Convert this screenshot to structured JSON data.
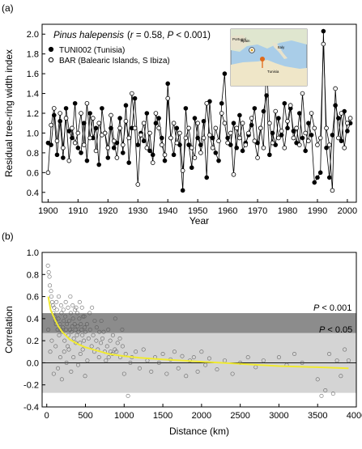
{
  "panel_a": {
    "label": "(a)",
    "title_species": "Pinus halepensis",
    "title_stats": "(r = 0.58, P < 0.001)",
    "legend": [
      {
        "name": "TUNI002 (Tunisia)",
        "marker": "filled"
      },
      {
        "name": "BAR (Balearic Islands, S Ibiza)",
        "marker": "open"
      }
    ],
    "map_labels": [
      "Portugal",
      "Spain",
      "Italy",
      "Tunisia"
    ]
  },
  "panel_b": {
    "label": "(b)",
    "annotation_high": "P < 0.001",
    "annotation_low": "P < 0.05",
    "band_colors": {
      "outer": "#8c8c8c",
      "inner": "#d4d4d4",
      "fit": "#f0ea30"
    }
  },
  "chart_data": [
    {
      "type": "line",
      "xlabel": "Year",
      "ylabel": "Residual tree-ring width index",
      "xlim": [
        1898,
        2003
      ],
      "ylim": [
        0.3,
        2.1
      ],
      "xticks": [
        1900,
        1910,
        1920,
        1930,
        1940,
        1950,
        1960,
        1970,
        1980,
        1990,
        2000
      ],
      "yticks": [
        0.4,
        0.6,
        0.8,
        1.0,
        1.2,
        1.4,
        1.6,
        1.8,
        2.0
      ],
      "x": [
        1900,
        1901,
        1902,
        1903,
        1904,
        1905,
        1906,
        1907,
        1908,
        1909,
        1910,
        1911,
        1912,
        1913,
        1914,
        1915,
        1916,
        1917,
        1918,
        1919,
        1920,
        1921,
        1922,
        1923,
        1924,
        1925,
        1926,
        1927,
        1928,
        1929,
        1930,
        1931,
        1932,
        1933,
        1934,
        1935,
        1936,
        1937,
        1938,
        1939,
        1940,
        1941,
        1942,
        1943,
        1944,
        1945,
        1946,
        1947,
        1948,
        1949,
        1950,
        1951,
        1952,
        1953,
        1954,
        1955,
        1956,
        1957,
        1958,
        1959,
        1960,
        1961,
        1962,
        1963,
        1964,
        1965,
        1966,
        1967,
        1968,
        1969,
        1970,
        1971,
        1972,
        1973,
        1974,
        1975,
        1976,
        1977,
        1978,
        1979,
        1980,
        1981,
        1982,
        1983,
        1984,
        1985,
        1986,
        1987,
        1988,
        1989,
        1990,
        1991,
        1992,
        1993,
        1994,
        1995,
        1996,
        1997,
        1998,
        1999,
        2000,
        2001
      ],
      "series": [
        {
          "name": "TUNI002 (Tunisia)",
          "marker": "filled",
          "values": [
            0.9,
            0.88,
            1.18,
            0.78,
            1.12,
            0.75,
            1.25,
            1.02,
            0.95,
            1.3,
            0.85,
            0.8,
            1.1,
            0.72,
            1.2,
            0.95,
            1.05,
            0.68,
            1.25,
            1.0,
            0.75,
            1.05,
            0.85,
            0.9,
            1.15,
            0.8,
            1.28,
            0.7,
            1.05,
            1.35,
            0.88,
            1.0,
            0.92,
            1.2,
            0.82,
            0.78,
            1.1,
            1.15,
            0.95,
            0.72,
            1.5,
            0.95,
            0.78,
            1.05,
            0.88,
            0.42,
            1.25,
            0.88,
            0.65,
            1.15,
            0.95,
            0.88,
            1.12,
            0.55,
            1.32,
            0.95,
            0.8,
            0.72,
            1.3,
            1.6,
            0.95,
            0.88,
            1.1,
            0.85,
            1.18,
            0.82,
            0.9,
            0.98,
            1.08,
            1.25,
            0.9,
            1.05,
            1.22,
            1.38,
            0.78,
            1.0,
            0.88,
            1.15,
            0.98,
            1.3,
            1.05,
            1.25,
            1.02,
            0.9,
            1.2,
            0.95,
            0.82,
            1.1,
            0.98,
            0.5,
            0.55,
            0.6,
            2.03,
            0.85,
            0.55,
            0.98,
            1.28,
            1.15,
            0.92,
            1.22,
            1.02,
            1.1
          ]
        },
        {
          "name": "BAR (Balearic Islands, S Ibiza)",
          "marker": "open",
          "values": [
            0.6,
            1.08,
            1.25,
            0.92,
            1.2,
            0.85,
            1.15,
            0.72,
            1.05,
            0.9,
            1.0,
            1.2,
            0.88,
            1.3,
            0.95,
            1.15,
            0.82,
            1.1,
            0.98,
            1.0,
            0.85,
            1.18,
            0.92,
            0.75,
            1.05,
            0.88,
            1.12,
            0.95,
            1.4,
            1.05,
            0.48,
            0.98,
            1.1,
            0.85,
            1.0,
            0.7,
            1.2,
            1.05,
            0.88,
            0.78,
            1.35,
            0.95,
            1.1,
            0.9,
            1.0,
            0.62,
            0.95,
            1.05,
            0.85,
            0.75,
            1.1,
            0.8,
            0.95,
            1.3,
            0.98,
            0.85,
            1.05,
            0.92,
            1.2,
            1.1,
            0.9,
            1.0,
            0.58,
            1.05,
            0.95,
            1.1,
            0.88,
            1.0,
            1.15,
            0.92,
            0.75,
            1.05,
            0.85,
            1.72,
            1.1,
            0.9,
            1.22,
            0.95,
            1.02,
            0.85,
            1.12,
            1.28,
            0.95,
            1.05,
            0.88,
            1.4,
            1.0,
            0.92,
            1.2,
            1.05,
            0.88,
            0.95,
            1.9,
            1.05,
            0.88,
            0.42,
            1.45,
            0.95,
            1.2,
            0.85,
            1.1,
            1.15
          ]
        }
      ]
    },
    {
      "type": "scatter",
      "xlabel": "Distance (km)",
      "ylabel": "Correlation",
      "xlim": [
        -60,
        4000
      ],
      "ylim": [
        -0.4,
        1.0
      ],
      "xticks": [
        0,
        500,
        1000,
        1500,
        2000,
        2500,
        3000,
        3500,
        4000
      ],
      "yticks": [
        -0.4,
        -0.2,
        0.0,
        0.2,
        0.4,
        0.6,
        0.8,
        1.0
      ],
      "bands": {
        "p001": [
          -0.27,
          0.45
        ],
        "p05": [
          -0.27,
          0.27
        ]
      },
      "fit": {
        "x": [
          20,
          50,
          100,
          150,
          200,
          300,
          400,
          500,
          600,
          800,
          1000,
          1200,
          1500,
          2000,
          2500,
          3000,
          3500,
          3900
        ],
        "y": [
          0.6,
          0.48,
          0.4,
          0.33,
          0.28,
          0.21,
          0.17,
          0.14,
          0.12,
          0.08,
          0.06,
          0.045,
          0.03,
          0.01,
          -0.01,
          -0.03,
          -0.04,
          -0.05
        ]
      },
      "points": [
        [
          15,
          0.88
        ],
        [
          25,
          0.82
        ],
        [
          35,
          0.78
        ],
        [
          40,
          0.7
        ],
        [
          55,
          0.65
        ],
        [
          60,
          0.6
        ],
        [
          70,
          0.55
        ],
        [
          80,
          0.52
        ],
        [
          85,
          0.45
        ],
        [
          95,
          0.5
        ],
        [
          100,
          0.42
        ],
        [
          110,
          0.38
        ],
        [
          120,
          0.35
        ],
        [
          130,
          0.48
        ],
        [
          140,
          0.3
        ],
        [
          150,
          0.4
        ],
        [
          160,
          0.25
        ],
        [
          170,
          0.35
        ],
        [
          180,
          0.3
        ],
        [
          190,
          0.45
        ],
        [
          200,
          0.28
        ],
        [
          210,
          0.32
        ],
        [
          220,
          0.38
        ],
        [
          230,
          0.2
        ],
        [
          240,
          0.42
        ],
        [
          250,
          0.3
        ],
        [
          260,
          0.35
        ],
        [
          270,
          0.15
        ],
        [
          280,
          0.25
        ],
        [
          290,
          0.38
        ],
        [
          300,
          0.3
        ],
        [
          310,
          0.45
        ],
        [
          320,
          0.28
        ],
        [
          330,
          0.33
        ],
        [
          340,
          0.4
        ],
        [
          350,
          0.22
        ],
        [
          360,
          0.35
        ],
        [
          370,
          0.3
        ],
        [
          380,
          0.5
        ],
        [
          390,
          0.25
        ],
        [
          400,
          0.33
        ],
        [
          410,
          0.28
        ],
        [
          420,
          0.4
        ],
        [
          430,
          0.18
        ],
        [
          440,
          0.35
        ],
        [
          450,
          0.3
        ],
        [
          460,
          0.25
        ],
        [
          470,
          0.42
        ],
        [
          480,
          0.2
        ],
        [
          490,
          0.32
        ],
        [
          500,
          0.28
        ],
        [
          520,
          0.35
        ],
        [
          540,
          0.22
        ],
        [
          560,
          0.3
        ],
        [
          580,
          0.15
        ],
        [
          600,
          0.25
        ],
        [
          620,
          0.38
        ],
        [
          640,
          0.2
        ],
        [
          660,
          0.12
        ],
        [
          680,
          0.28
        ],
        [
          700,
          0.18
        ],
        [
          720,
          0.22
        ],
        [
          750,
          0.1
        ],
        [
          780,
          0.15
        ],
        [
          800,
          0.05
        ],
        [
          820,
          0.2
        ],
        [
          850,
          0.08
        ],
        [
          880,
          0.12
        ],
        [
          900,
          0.1
        ],
        [
          950,
          0.05
        ],
        [
          980,
          0.15
        ],
        [
          1000,
          -0.1
        ],
        [
          1020,
          0.08
        ],
        [
          1050,
          -0.3
        ],
        [
          1080,
          0.0
        ],
        [
          1100,
          0.05
        ],
        [
          1150,
          0.1
        ],
        [
          1200,
          -0.05
        ],
        [
          1250,
          0.12
        ],
        [
          1300,
          0.02
        ],
        [
          1350,
          -0.08
        ],
        [
          1400,
          0.05
        ],
        [
          1450,
          0.0
        ],
        [
          1500,
          0.08
        ],
        [
          1550,
          -0.1
        ],
        [
          1600,
          0.03
        ],
        [
          1650,
          0.1
        ],
        [
          1700,
          -0.05
        ],
        [
          1750,
          0.06
        ],
        [
          1800,
          -0.12
        ],
        [
          1850,
          0.02
        ],
        [
          1900,
          0.05
        ],
        [
          1950,
          -0.08
        ],
        [
          2000,
          0.1
        ],
        [
          2050,
          -0.02
        ],
        [
          2100,
          0.04
        ],
        [
          2200,
          -0.06
        ],
        [
          2300,
          0.02
        ],
        [
          2400,
          -0.1
        ],
        [
          2500,
          0.0
        ],
        [
          2600,
          0.05
        ],
        [
          2700,
          -0.04
        ],
        [
          2800,
          0.02
        ],
        [
          3000,
          0.05
        ],
        [
          3100,
          -0.02
        ],
        [
          3200,
          0.08
        ],
        [
          3300,
          0.0
        ],
        [
          3500,
          -0.15
        ],
        [
          3550,
          -0.3
        ],
        [
          3600,
          -0.25
        ],
        [
          3650,
          0.08
        ],
        [
          3700,
          -0.28
        ],
        [
          3750,
          0.02
        ],
        [
          3800,
          -0.12
        ],
        [
          3850,
          0.12
        ],
        [
          3900,
          0.02
        ],
        [
          20,
          0.3
        ],
        [
          45,
          0.1
        ],
        [
          65,
          0.2
        ],
        [
          90,
          -0.1
        ],
        [
          115,
          0.15
        ],
        [
          145,
          -0.05
        ],
        [
          175,
          0.05
        ],
        [
          195,
          -0.15
        ],
        [
          225,
          0.1
        ],
        [
          255,
          0.0
        ],
        [
          285,
          0.12
        ],
        [
          315,
          -0.08
        ],
        [
          345,
          0.05
        ],
        [
          375,
          0.18
        ],
        [
          405,
          -0.02
        ],
        [
          435,
          0.08
        ],
        [
          465,
          0.12
        ],
        [
          495,
          -0.12
        ],
        [
          525,
          0.02
        ],
        [
          555,
          0.45
        ],
        [
          585,
          0.5
        ],
        [
          615,
          0.1
        ],
        [
          645,
          0.32
        ],
        [
          675,
          0.05
        ],
        [
          705,
          0.38
        ],
        [
          735,
          0.28
        ],
        [
          765,
          0.02
        ],
        [
          795,
          0.3
        ],
        [
          825,
          0.1
        ],
        [
          855,
          0.25
        ],
        [
          885,
          0.4
        ],
        [
          915,
          0.18
        ],
        [
          945,
          0.22
        ],
        [
          975,
          0.3
        ],
        [
          125,
          0.55
        ],
        [
          155,
          0.6
        ],
        [
          185,
          0.52
        ],
        [
          215,
          0.48
        ],
        [
          245,
          0.55
        ],
        [
          275,
          0.5
        ],
        [
          305,
          0.6
        ],
        [
          335,
          0.52
        ],
        [
          365,
          0.48
        ],
        [
          395,
          0.45
        ],
        [
          425,
          0.55
        ],
        [
          455,
          0.5
        ],
        [
          485,
          0.42
        ]
      ]
    }
  ]
}
